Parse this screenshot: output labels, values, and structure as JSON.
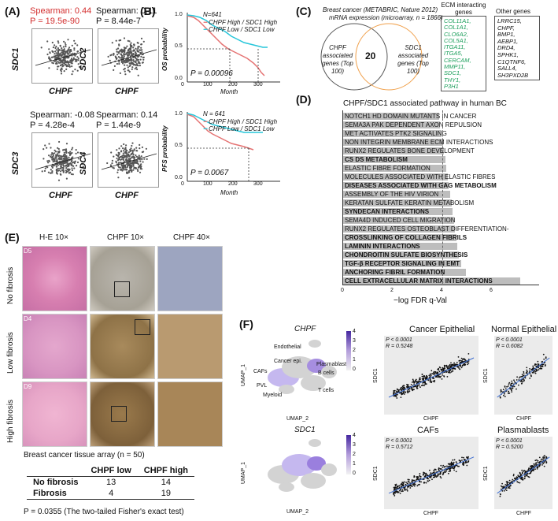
{
  "labels": {
    "A": "(A)",
    "B": "(B)",
    "C": "(C)",
    "D": "(D)",
    "E": "(E)",
    "F": "(F)"
  },
  "panelA": {
    "plots": [
      {
        "ylabel": "SDC1",
        "xlabel": "CHPF",
        "spearman": "Spearman: 0.44",
        "p": "P = 19.5e-90",
        "highlight": true
      },
      {
        "ylabel": "SDC2",
        "xlabel": "CHPF",
        "spearman": "Spearman: 0.11",
        "p": "P = 8.44e-7",
        "highlight": false
      },
      {
        "ylabel": "SDC3",
        "xlabel": "CHPF",
        "spearman": "Spearman: -0.08",
        "p": "P = 4.28e-4",
        "highlight": false
      },
      {
        "ylabel": "SDC4",
        "xlabel": "CHPF",
        "spearman": "Spearman: 0.14",
        "p": "P = 1.44e-9",
        "highlight": false
      }
    ]
  },
  "panelB": {
    "os": {
      "n": "N=641",
      "legend_high": "CHPF High / SDC1 High",
      "legend_low": "CHPF Low / SDC1 Low",
      "p": "P = 0.00096",
      "ylabel": "OS probability",
      "xlabel": "Month",
      "xticks": [
        "0",
        "100",
        "200",
        "300"
      ],
      "yticks": [
        "0.0",
        "0.5",
        "1.0"
      ]
    },
    "pfs": {
      "n": "N = 641",
      "legend_high": "CHPF High / SDC1 High",
      "legend_low": "CHPF Low / SDC1 Low",
      "p": "P = 0.0067",
      "ylabel": "PFS probability",
      "xlabel": "Month",
      "xticks": [
        "0",
        "100",
        "200",
        "300"
      ],
      "yticks": [
        "0.0",
        "0.5",
        "1.0"
      ]
    },
    "colors": {
      "high": "#e57373",
      "low": "#26c6da"
    }
  },
  "panelC": {
    "title": "Breast cancer (METABRIC, Nature 2012)",
    "subtitle": "mRNA expression (microarray, n = 1866)",
    "left_circle": "CHPF associated genes (Top 100)",
    "right_circle": "SDC1 associated genes (Top 100)",
    "overlap": "20",
    "ecm_title": "ECM interacting genes",
    "ecm_genes": [
      "COL11A1,",
      "COL1A1,",
      "CLO6A2,",
      "COL5A1,",
      "ITGA11,",
      "ITGA5,",
      "CERCAM,",
      "MMP11,",
      "SDC1,",
      "THY1,",
      "P3H1"
    ],
    "other_title": "Other genes",
    "other_genes": [
      "LRRC15,",
      "CHPF,",
      "BMP1,",
      "AEBP1,",
      "DRD4,",
      "SPHK1,",
      "C1QTNF6,",
      "SALL4,",
      "SH3PXD2B"
    ]
  },
  "panelD": {
    "title": "CHPF/SDC1 associated pathway in human BC",
    "xlabel": "−log FDR q-Val",
    "xticks": [
      "0",
      "2",
      "4",
      "6"
    ],
    "pathways": [
      {
        "name": "NOTCH1 HD DOMAIN MUTANTS IN CANCER",
        "value": 3.9,
        "bold": false
      },
      {
        "name": "SEMA3A PAK DEPENDENT AXON REPULSION",
        "value": 3.95,
        "bold": false
      },
      {
        "name": "MET ACTIVATES PTK2 SIGNALING",
        "value": 4.0,
        "bold": false
      },
      {
        "name": "NON INTEGRIN MEMBRANE ECM INTERACTIONS",
        "value": 4.05,
        "bold": false
      },
      {
        "name": "RUNX2 REGULATES BONE DEVELOPMENT",
        "value": 4.1,
        "bold": false
      },
      {
        "name": "CS DS METABOLISM",
        "value": 4.15,
        "bold": true
      },
      {
        "name": "ELASTIC FIBRE FORMATION",
        "value": 4.2,
        "bold": false
      },
      {
        "name": "MOLECULES ASSOCIATED WITH ELASTIC FIBRES",
        "value": 4.25,
        "bold": false
      },
      {
        "name": "DISEASES ASSOCIATED WITH GAG METABOLISM",
        "value": 4.3,
        "bold": true
      },
      {
        "name": "ASSEMBLY OF THE HIV VIRION",
        "value": 4.35,
        "bold": false
      },
      {
        "name": "KERATAN SULFATE KERATIN METABOLISM",
        "value": 4.4,
        "bold": false
      },
      {
        "name": "SYNDECAN INTERACTIONS",
        "value": 4.45,
        "bold": true
      },
      {
        "name": "SEMA4D INDUCED CELL MIGRATION",
        "value": 4.5,
        "bold": false
      },
      {
        "name": "RUNX2 REGULATES OSTEOBLAST DIFFERENTIATION-",
        "value": 4.55,
        "bold": false
      },
      {
        "name": "CROSSLINKING OF COLLAGEN FIBRILS",
        "value": 4.6,
        "bold": true
      },
      {
        "name": "LAMININ INTERACTIONS",
        "value": 4.65,
        "bold": true
      },
      {
        "name": "CHONDROITIN SULFATE BIOSYNTHESIS",
        "value": 4.7,
        "bold": true
      },
      {
        "name": "TGF-β RECEPTOR SIGNALING IN EMT",
        "value": 4.8,
        "bold": true
      },
      {
        "name": "ANCHORING FIBRIL FORMATION",
        "value": 5.0,
        "bold": true
      },
      {
        "name": "CELL EXTRACELLULAR MATRIX INTERACTIONS",
        "value": 7.2,
        "bold": true
      }
    ]
  },
  "panelE": {
    "col_headers": [
      "H-E 10×",
      "CHPF 10×",
      "CHPF 40×"
    ],
    "rows": [
      {
        "id": "D5",
        "label": "No fibrosis"
      },
      {
        "id": "D4",
        "label": "Low fibrosis"
      },
      {
        "id": "D9",
        "label": "High fibrosis"
      }
    ],
    "caption": "Breast cancer tissue array (n = 50)",
    "table": {
      "headers": [
        "",
        "CHPF low",
        "CHPF high"
      ],
      "rows": [
        [
          "No fibrosis",
          "13",
          "14"
        ],
        [
          "Fibrosis",
          "4",
          "19"
        ]
      ]
    },
    "fisher": "P = 0.0355 (The two-tailed Fisher's exact test)"
  },
  "panelF": {
    "umap1": {
      "gene": "CHPF",
      "ylabel": "UMAP_1",
      "xlabel": "UMAP_2",
      "scale": [
        "4",
        "3",
        "2",
        "1",
        "0"
      ],
      "clusters": [
        "Endothelial",
        "Cancer epi.",
        "CAFs",
        "Plasmablasts",
        "B cells",
        "PVL",
        "Myeloid",
        "T cells"
      ]
    },
    "umap2": {
      "gene": "SDC1",
      "ylabel": "UMAP_1",
      "xlabel": "UMAP_2",
      "scale": [
        "4",
        "3",
        "2",
        "1",
        "0"
      ]
    },
    "scatters": [
      {
        "title": "Cancer Epithelial",
        "p": "P < 0.0001",
        "r": "R = 0.5248",
        "xlabel": "CHPF",
        "ylabel": "SDC1"
      },
      {
        "title": "Normal Epithelial",
        "p": "P < 0.0001",
        "r": "R = 0.6082",
        "xlabel": "CHPF",
        "ylabel": "SDC1"
      },
      {
        "title": "CAFs",
        "p": "P < 0.0001",
        "r": "R = 0.5712",
        "xlabel": "CHPF",
        "ylabel": "SDC1"
      },
      {
        "title": "Plasmablasts",
        "p": "P < 0.0001",
        "r": "R = 0.5200",
        "xlabel": "CHPF",
        "ylabel": "SDC1"
      }
    ]
  }
}
